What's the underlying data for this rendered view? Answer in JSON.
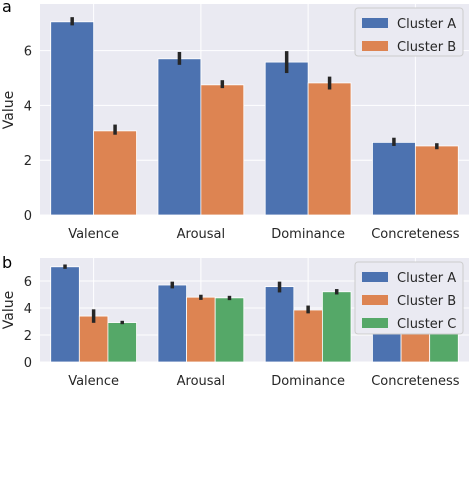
{
  "chart_data": [
    {
      "panel": "a",
      "type": "bar",
      "categories": [
        "Valence",
        "Arousal",
        "Dominance",
        "Concreteness"
      ],
      "ylabel": "Value",
      "ylim": [
        0,
        7.7
      ],
      "yticks": [
        0,
        2,
        4,
        6
      ],
      "grid": true,
      "legend_position": "top-right",
      "series": [
        {
          "name": "Cluster A",
          "color": "#4c72b0",
          "values": [
            7.05,
            5.7,
            5.58,
            2.65
          ],
          "err_low": [
            6.92,
            5.48,
            5.18,
            2.52
          ],
          "err_high": [
            7.22,
            5.95,
            5.98,
            2.82
          ]
        },
        {
          "name": "Cluster B",
          "color": "#dd8452",
          "values": [
            3.07,
            4.75,
            4.82,
            2.52
          ],
          "err_low": [
            2.93,
            4.63,
            4.58,
            2.4
          ],
          "err_high": [
            3.3,
            4.92,
            5.05,
            2.62
          ]
        }
      ]
    },
    {
      "panel": "b",
      "type": "bar",
      "categories": [
        "Valence",
        "Arousal",
        "Dominance",
        "Concreteness"
      ],
      "ylabel": "Value",
      "ylim": [
        0,
        7.7
      ],
      "yticks": [
        0,
        2,
        4,
        6
      ],
      "grid": true,
      "legend_position": "top-right",
      "series": [
        {
          "name": "Cluster A",
          "color": "#4c72b0",
          "values": [
            7.05,
            5.7,
            5.58,
            2.65
          ],
          "err_low": [
            6.9,
            5.45,
            5.15,
            2.48
          ],
          "err_high": [
            7.22,
            5.95,
            5.95,
            2.8
          ]
        },
        {
          "name": "Cluster B",
          "color": "#dd8452",
          "values": [
            3.4,
            4.8,
            3.85,
            2.42
          ],
          "err_low": [
            2.9,
            4.6,
            3.6,
            2.22
          ],
          "err_high": [
            3.9,
            4.98,
            4.18,
            2.6
          ]
        },
        {
          "name": "Cluster C",
          "color": "#55a868",
          "values": [
            2.92,
            4.75,
            5.2,
            2.55
          ],
          "err_low": [
            2.8,
            4.58,
            5.0,
            2.4
          ],
          "err_high": [
            3.05,
            4.9,
            5.4,
            2.68
          ]
        }
      ]
    }
  ]
}
